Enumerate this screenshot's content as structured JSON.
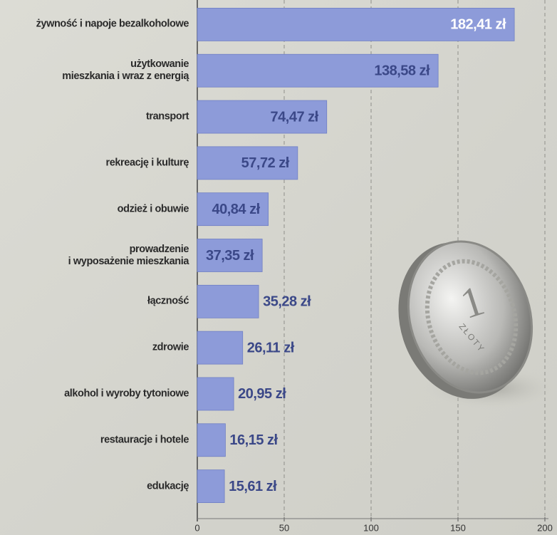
{
  "chart_data": {
    "type": "barh",
    "categories": [
      "żywność i napoje bezalkoholowe",
      "użytkowanie\nmieszkania i wraz z energią",
      "transport",
      "rekreację i kulturę",
      "odzież i obuwie",
      "prowadzenie\ni wyposażenie mieszkania",
      "łączność",
      "zdrowie",
      "alkohol i wyroby tytoniowe",
      "restauracje i hotele",
      "edukację"
    ],
    "values": [
      182.41,
      138.58,
      74.47,
      57.72,
      40.84,
      37.35,
      35.28,
      26.11,
      20.95,
      16.15,
      15.61
    ],
    "value_labels": [
      "182,41 zł",
      "138,58 zł",
      "74,47 zł",
      "57,72 zł",
      "40,84 zł",
      "37,35 zł",
      "35,28 zł",
      "26,11 zł",
      "20,95 zł",
      "16,15 zł",
      "15,61 zł"
    ],
    "color": "#8d9bd9",
    "xlim": [
      0,
      200
    ],
    "xticks": [
      0,
      50,
      100,
      150,
      200
    ],
    "grid": true,
    "coin": {
      "denomination": "1",
      "currency": "ZŁOTY"
    }
  }
}
